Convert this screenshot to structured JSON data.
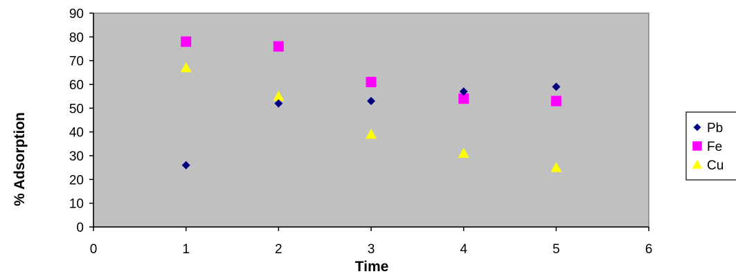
{
  "chart_data": {
    "type": "scatter",
    "title": "",
    "xlabel": "Time",
    "ylabel": "% Adsorption",
    "xlim": [
      0,
      6
    ],
    "ylim": [
      0,
      90
    ],
    "x_ticks": [
      0,
      1,
      2,
      3,
      4,
      5,
      6
    ],
    "y_ticks": [
      0,
      10,
      20,
      30,
      40,
      50,
      60,
      70,
      80,
      90
    ],
    "grid": false,
    "plot_background": "#c0c0c0",
    "legend_position": "right",
    "series": [
      {
        "name": "Pb",
        "marker": "diamond",
        "color": "#000080",
        "x": [
          1,
          2,
          3,
          4,
          5
        ],
        "y": [
          26,
          52,
          53,
          57,
          59
        ]
      },
      {
        "name": "Fe",
        "marker": "square",
        "color": "#ff00ff",
        "x": [
          1,
          2,
          3,
          4,
          5
        ],
        "y": [
          78,
          76,
          61,
          54,
          53
        ]
      },
      {
        "name": "Cu",
        "marker": "triangle",
        "color": "#ffff00",
        "x": [
          1,
          2,
          3,
          4,
          5
        ],
        "y": [
          67,
          55,
          39,
          31,
          25
        ]
      }
    ]
  }
}
